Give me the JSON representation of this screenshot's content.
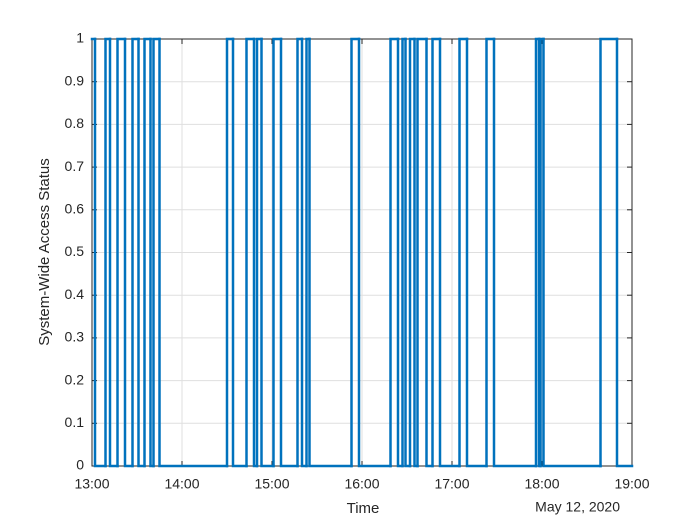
{
  "chart_data": {
    "type": "stairs",
    "x_label": "Time",
    "y_label": "System-Wide Access Status",
    "date_label": "May 12, 2020",
    "color": "#0072bd",
    "grid": true,
    "x": [
      "13:00",
      "13:02",
      "13:09",
      "13:12",
      "13:17",
      "13:22",
      "13:27",
      "13:31",
      "13:35",
      "13:39",
      "13:41",
      "13:45",
      "14:30",
      "14:34",
      "14:43",
      "14:48",
      "14:50",
      "14:53",
      "15:01",
      "15:06",
      "15:17",
      "15:20",
      "15:23",
      "15:25",
      "15:53",
      "15:58",
      "16:19",
      "16:24",
      "16:27",
      "16:29",
      "16:32",
      "16:35",
      "16:37",
      "16:43",
      "16:47",
      "16:52",
      "17:05",
      "17:10",
      "17:23",
      "17:28",
      "17:56",
      "17:58",
      "17:59",
      "18:01",
      "18:39",
      "18:50"
    ],
    "values": [
      1,
      0,
      1,
      0,
      1,
      0,
      1,
      0,
      1,
      0,
      1,
      0,
      1,
      0,
      1,
      0,
      1,
      0,
      1,
      0,
      1,
      0,
      1,
      0,
      1,
      0,
      1,
      0,
      1,
      0,
      1,
      0,
      1,
      0,
      1,
      0,
      1,
      0,
      1,
      0,
      1,
      0,
      1,
      0,
      1,
      0
    ],
    "xlim": [
      "13:00",
      "19:00"
    ],
    "xticks": [
      "13:00",
      "14:00",
      "15:00",
      "16:00",
      "17:00",
      "18:00",
      "19:00"
    ],
    "ylim": [
      0,
      1
    ],
    "yticks": [
      0,
      0.1,
      0.2,
      0.3,
      0.4,
      0.5,
      0.6,
      0.7,
      0.8,
      0.9,
      1
    ]
  }
}
